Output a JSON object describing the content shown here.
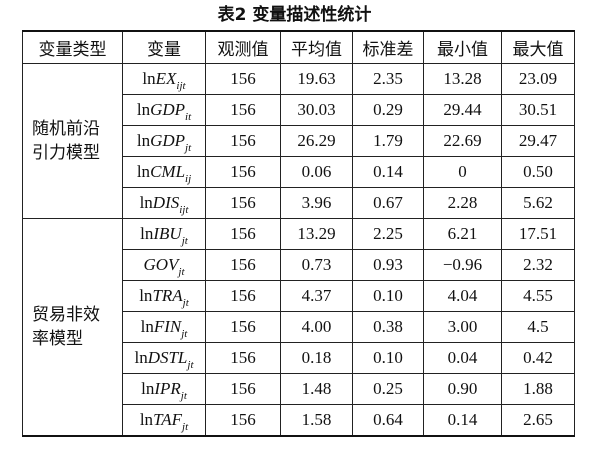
{
  "title": "表2 变量描述性统计",
  "table": {
    "headers": {
      "variable_type": "变量类型",
      "variable": "变量",
      "obs": "观测值",
      "mean": "平均值",
      "sd": "标准差",
      "min": "最小值",
      "max": "最大值"
    },
    "groups": [
      {
        "label_lines": [
          "随机前沿",
          "引力模型"
        ],
        "rows": [
          {
            "var": {
              "prefix": "ln",
              "name": "EX",
              "sub": "ijt"
            },
            "obs": "156",
            "mean": "19.63",
            "sd": "2.35",
            "min": "13.28",
            "max": "23.09"
          },
          {
            "var": {
              "prefix": "ln",
              "name": "GDP",
              "sub": "it"
            },
            "obs": "156",
            "mean": "30.03",
            "sd": "0.29",
            "min": "29.44",
            "max": "30.51"
          },
          {
            "var": {
              "prefix": "ln",
              "name": "GDP",
              "sub": "jt"
            },
            "obs": "156",
            "mean": "26.29",
            "sd": "1.79",
            "min": "22.69",
            "max": "29.47"
          },
          {
            "var": {
              "prefix": "ln",
              "name": "CML",
              "sub": "ij"
            },
            "obs": "156",
            "mean": "0.06",
            "sd": "0.14",
            "min": "0",
            "max": "0.50"
          },
          {
            "var": {
              "prefix": "ln",
              "name": "DIS",
              "sub": "ijt"
            },
            "obs": "156",
            "mean": "3.96",
            "sd": "0.67",
            "min": "2.28",
            "max": "5.62"
          }
        ]
      },
      {
        "label_lines": [
          "贸易非效",
          "率模型"
        ],
        "rows": [
          {
            "var": {
              "prefix": "ln",
              "name": "IBU",
              "sub": "jt"
            },
            "obs": "156",
            "mean": "13.29",
            "sd": "2.25",
            "min": "6.21",
            "max": "17.51"
          },
          {
            "var": {
              "name": "GOV",
              "sub": "jt"
            },
            "obs": "156",
            "mean": "0.73",
            "sd": "0.93",
            "min": "−0.96",
            "max": "2.32"
          },
          {
            "var": {
              "prefix": "ln",
              "name": "TRA",
              "sub": "jt"
            },
            "obs": "156",
            "mean": "4.37",
            "sd": "0.10",
            "min": "4.04",
            "max": "4.55"
          },
          {
            "var": {
              "prefix": "ln",
              "name": "FIN",
              "sub": "jt"
            },
            "obs": "156",
            "mean": "4.00",
            "sd": "0.38",
            "min": "3.00",
            "max": "4.5"
          },
          {
            "var": {
              "prefix": "ln",
              "name": "DSTL",
              "sub": "jt"
            },
            "obs": "156",
            "mean": "0.18",
            "sd": "0.10",
            "min": "0.04",
            "max": "0.42"
          },
          {
            "var": {
              "prefix": "ln",
              "name": "IPR",
              "sub": "jt"
            },
            "obs": "156",
            "mean": "1.48",
            "sd": "0.25",
            "min": "0.90",
            "max": "1.88"
          },
          {
            "var": {
              "prefix": "ln",
              "name": "TAF",
              "sub": "jt"
            },
            "obs": "156",
            "mean": "1.58",
            "sd": "0.64",
            "min": "0.14",
            "max": "2.65"
          }
        ]
      }
    ]
  }
}
